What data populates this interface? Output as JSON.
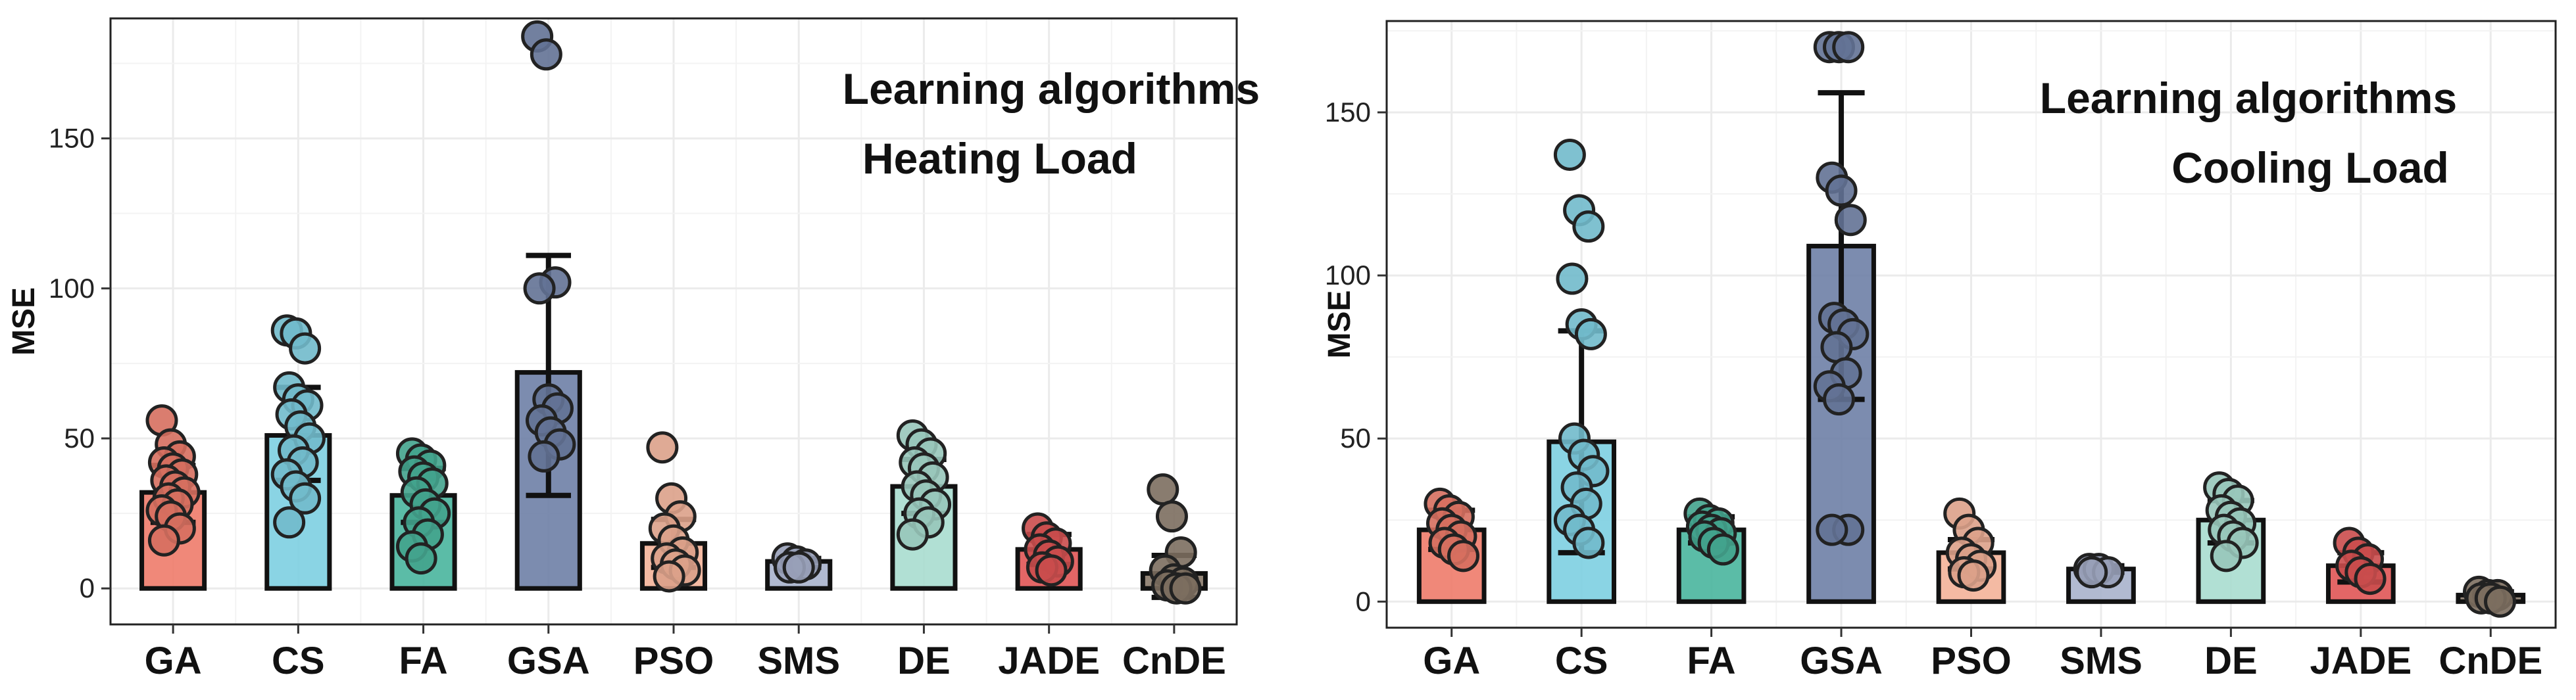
{
  "chart_data": [
    {
      "type": "bar",
      "title": "",
      "xlabel": "",
      "ylabel": "MSE",
      "annotations": [
        "Learning algorithms",
        "Heating Load"
      ],
      "ylim": [
        -12,
        190
      ],
      "yticks": [
        0,
        50,
        100,
        150
      ],
      "grid": true,
      "legend": "none",
      "categories": [
        "GA",
        "CS",
        "FA",
        "GSA",
        "PSO",
        "SMS",
        "DE",
        "JADE",
        "CnDE"
      ],
      "colors": [
        "#EE7B6A",
        "#7DCFE1",
        "#49B59D",
        "#6E7FA6",
        "#F3B399",
        "#A9B2CC",
        "#A9DDCF",
        "#E05555",
        "#8A7A6A"
      ],
      "values": [
        32,
        51,
        31,
        72,
        15,
        9,
        34,
        13,
        5
      ],
      "error_low": [
        22,
        36,
        22,
        31,
        7,
        7,
        25,
        8,
        -3
      ],
      "error_high": [
        41,
        67,
        40,
        111,
        23,
        10,
        43,
        18,
        11
      ],
      "points": [
        [
          56,
          48,
          44,
          42,
          40,
          38,
          36,
          34,
          32,
          30,
          28,
          26,
          24,
          20,
          16
        ],
        [
          86,
          85,
          80,
          67,
          63,
          61,
          58,
          54,
          50,
          46,
          42,
          38,
          34,
          30,
          22
        ],
        [
          45,
          43,
          41,
          39,
          37,
          35,
          32,
          28,
          25,
          22,
          18,
          14,
          10
        ],
        [
          184,
          178,
          102,
          100,
          63,
          60,
          56,
          52,
          48,
          44
        ],
        [
          47,
          30,
          24,
          20,
          16,
          12,
          10,
          8,
          6,
          4
        ],
        [
          10,
          9,
          8,
          7,
          7
        ],
        [
          51,
          48,
          45,
          42,
          40,
          37,
          34,
          31,
          28,
          25,
          22,
          18
        ],
        [
          20,
          17,
          15,
          13,
          11,
          9,
          7,
          6
        ],
        [
          33,
          24,
          12,
          6,
          3,
          2,
          1,
          0,
          0
        ]
      ]
    },
    {
      "type": "bar",
      "title": "",
      "xlabel": "",
      "ylabel": "MSE",
      "annotations": [
        "Learning algorithms",
        "Cooling Load"
      ],
      "ylim": [
        -8,
        178
      ],
      "yticks": [
        0,
        50,
        100,
        150
      ],
      "grid": true,
      "legend": "none",
      "categories": [
        "GA",
        "CS",
        "FA",
        "GSA",
        "PSO",
        "SMS",
        "DE",
        "JADE",
        "CnDE"
      ],
      "colors": [
        "#EE7B6A",
        "#7DCFE1",
        "#49B59D",
        "#6E7FA6",
        "#F3B399",
        "#A9B2CC",
        "#A9DDCF",
        "#E05555",
        "#8A7A6A"
      ],
      "values": [
        22,
        49,
        22,
        109,
        15,
        10,
        25,
        11,
        2
      ],
      "error_low": [
        16,
        15,
        18,
        62,
        10,
        9,
        18,
        6,
        1
      ],
      "error_high": [
        28,
        83,
        26,
        156,
        19,
        11,
        31,
        15,
        3
      ],
      "points": [
        [
          30,
          28,
          26,
          24,
          22,
          20,
          18,
          16,
          14
        ],
        [
          137,
          120,
          115,
          99,
          85,
          82,
          50,
          45,
          40,
          35,
          30,
          25,
          22,
          18
        ],
        [
          27,
          25,
          24,
          23,
          22,
          21,
          20,
          18,
          16
        ],
        [
          170,
          170,
          170,
          130,
          126,
          117,
          87,
          85,
          82,
          78,
          70,
          66,
          62,
          22,
          22
        ],
        [
          27,
          22,
          18,
          15,
          13,
          11,
          9,
          8
        ],
        [
          10,
          10,
          9,
          9
        ],
        [
          35,
          33,
          31,
          28,
          26,
          24,
          22,
          20,
          18,
          14
        ],
        [
          18,
          15,
          13,
          11,
          9,
          7
        ],
        [
          3,
          2,
          2,
          1,
          1,
          0
        ]
      ]
    }
  ]
}
